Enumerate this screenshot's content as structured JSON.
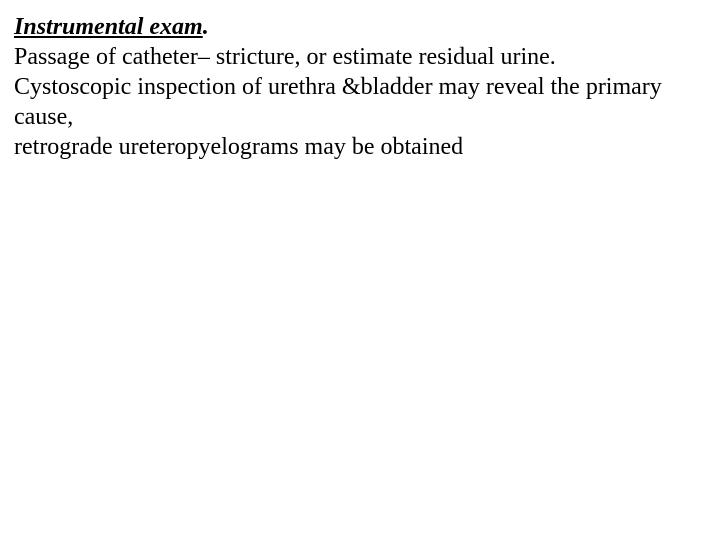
{
  "heading": {
    "text": "Instrumental exam",
    "period": "."
  },
  "paragraphs": {
    "p1": "Passage of catheter– stricture, or estimate residual urine.",
    "p2": "Cystoscopic inspection of urethra &bladder may reveal the primary cause,",
    "p3": " retrograde ureteropyelograms may be obtained"
  },
  "styles": {
    "font_family": "Times New Roman",
    "font_size_pt": 18,
    "text_color": "#000000",
    "background_color": "#ffffff",
    "heading_italic": true,
    "heading_bold": true,
    "heading_underline": true
  }
}
